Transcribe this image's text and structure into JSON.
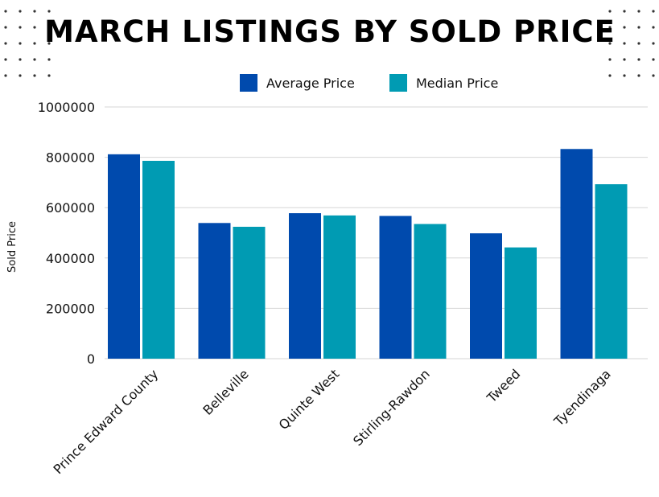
{
  "chart_data": {
    "type": "bar",
    "title": "MARCH LISTINGS BY SOLD PRICE",
    "ylabel": "Sold Price",
    "xlabel": "",
    "categories": [
      "Prince Edward County",
      "Belleville",
      "Quinte West",
      "Stirling-Rawdon",
      "Tweed",
      "Tyendinaga"
    ],
    "series": [
      {
        "name": "Average Price",
        "color": "#004aad",
        "values": [
          812000,
          539000,
          578000,
          567000,
          498000,
          833000
        ]
      },
      {
        "name": "Median Price",
        "color": "#009bb3",
        "values": [
          786000,
          524000,
          569000,
          535000,
          442000,
          693000
        ]
      }
    ],
    "ylim": [
      0,
      1000000
    ],
    "yticks": [
      "0",
      "200000",
      "400000",
      "600000",
      "800000",
      "1000000"
    ],
    "grid": true,
    "legend": "top-center"
  }
}
